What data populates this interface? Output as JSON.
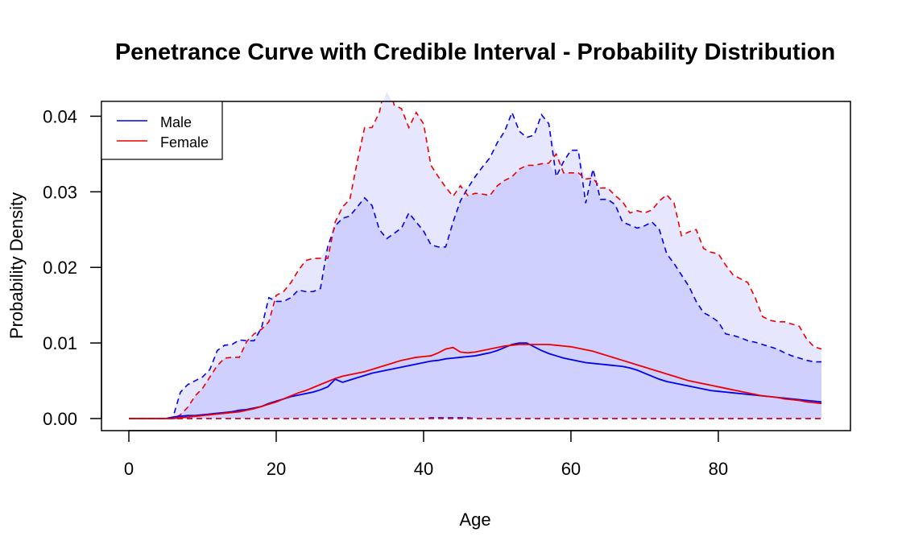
{
  "chart_data": {
    "type": "line",
    "title": "Penetrance Curve with Credible Interval - Probability Distribution",
    "xlabel": "Age",
    "ylabel": "Probability Density",
    "xlim": [
      0,
      94
    ],
    "ylim": [
      0,
      0.042
    ],
    "xticks": [
      0,
      20,
      40,
      60,
      80
    ],
    "xtick_labels": [
      "0",
      "20",
      "40",
      "60",
      "80"
    ],
    "yticks": [
      0,
      0.01,
      0.02,
      0.03,
      0.04
    ],
    "ytick_labels": [
      "0.00",
      "0.01",
      "0.02",
      "0.03",
      "0.04"
    ],
    "grid": false,
    "legend_position": "top-left",
    "x": [
      0,
      1,
      2,
      3,
      4,
      5,
      6,
      7,
      8,
      9,
      10,
      11,
      12,
      13,
      14,
      15,
      16,
      17,
      18,
      19,
      20,
      21,
      22,
      23,
      24,
      25,
      26,
      27,
      28,
      29,
      30,
      31,
      32,
      33,
      34,
      35,
      36,
      37,
      38,
      39,
      40,
      41,
      42,
      43,
      44,
      45,
      46,
      47,
      48,
      49,
      50,
      51,
      52,
      53,
      54,
      55,
      56,
      57,
      58,
      59,
      60,
      61,
      62,
      63,
      64,
      65,
      66,
      67,
      68,
      69,
      70,
      71,
      72,
      73,
      74,
      75,
      76,
      77,
      78,
      79,
      80,
      81,
      82,
      83,
      84,
      85,
      86,
      87,
      88,
      89,
      90,
      91,
      92,
      93,
      94
    ],
    "series": [
      {
        "name": "Male",
        "color": "#0000ee",
        "mean": [
          0,
          0,
          0,
          0,
          0,
          0,
          0.0002,
          0.0003,
          0.0004,
          0.0004,
          0.0005,
          0.0006,
          0.0007,
          0.0008,
          0.0009,
          0.0011,
          0.0012,
          0.0014,
          0.0016,
          0.002,
          0.0023,
          0.0026,
          0.0029,
          0.0031,
          0.0033,
          0.0035,
          0.0038,
          0.0042,
          0.0052,
          0.0048,
          0.0051,
          0.0054,
          0.0057,
          0.006,
          0.0062,
          0.0064,
          0.0066,
          0.0068,
          0.007,
          0.0072,
          0.0074,
          0.0076,
          0.0077,
          0.0079,
          0.008,
          0.0081,
          0.0082,
          0.0083,
          0.0085,
          0.0087,
          0.009,
          0.0094,
          0.0098,
          0.01,
          0.01,
          0.0095,
          0.009,
          0.0086,
          0.0083,
          0.008,
          0.0078,
          0.0076,
          0.0074,
          0.0073,
          0.0072,
          0.0071,
          0.007,
          0.0069,
          0.0067,
          0.0064,
          0.006,
          0.0056,
          0.0052,
          0.0049,
          0.0047,
          0.0045,
          0.0043,
          0.0041,
          0.0039,
          0.0037,
          0.0036,
          0.0035,
          0.0034,
          0.0033,
          0.0032,
          0.0031,
          0.003,
          0.0029,
          0.0028,
          0.0027,
          0.0026,
          0.0025,
          0.0024,
          0.0023,
          0.0022
        ],
        "lower": [
          0,
          0,
          0,
          0,
          0,
          0,
          0,
          0,
          0,
          0,
          0,
          0,
          0,
          0,
          0,
          0,
          0,
          0,
          0,
          0,
          0,
          0,
          0,
          0,
          0,
          0,
          0,
          0,
          0,
          0,
          0,
          0,
          0,
          0,
          0,
          0,
          0,
          0,
          0,
          0,
          0,
          0.0001,
          0.0001,
          0.0001,
          0.0001,
          0.0001,
          0.0001,
          0,
          0,
          0,
          0,
          0,
          0,
          0,
          0,
          0,
          0,
          0,
          0,
          0,
          0,
          0,
          0,
          0,
          0,
          0,
          0,
          0,
          0,
          0,
          0,
          0,
          0,
          0,
          0,
          0,
          0,
          0,
          0,
          0,
          0,
          0,
          0,
          0,
          0,
          0,
          0,
          0,
          0,
          0,
          0,
          0,
          0,
          0,
          0
        ],
        "upper": [
          0,
          0,
          0,
          0,
          0,
          0,
          0.0002,
          0.0035,
          0.0045,
          0.005,
          0.0055,
          0.0065,
          0.009,
          0.0097,
          0.0098,
          0.0104,
          0.0103,
          0.0103,
          0.012,
          0.016,
          0.0155,
          0.0155,
          0.016,
          0.017,
          0.0168,
          0.0168,
          0.0172,
          0.0228,
          0.0255,
          0.0265,
          0.0268,
          0.028,
          0.0292,
          0.0282,
          0.025,
          0.0238,
          0.0245,
          0.0252,
          0.0272,
          0.026,
          0.0248,
          0.023,
          0.0227,
          0.0227,
          0.026,
          0.0288,
          0.0305,
          0.032,
          0.0333,
          0.0345,
          0.0365,
          0.038,
          0.0405,
          0.038,
          0.0372,
          0.0375,
          0.0402,
          0.039,
          0.032,
          0.034,
          0.0355,
          0.0355,
          0.0285,
          0.033,
          0.029,
          0.029,
          0.0283,
          0.026,
          0.0256,
          0.0252,
          0.0255,
          0.026,
          0.025,
          0.0218,
          0.0205,
          0.019,
          0.0175,
          0.0155,
          0.014,
          0.0135,
          0.0128,
          0.0112,
          0.011,
          0.0107,
          0.0103,
          0.0101,
          0.0098,
          0.0095,
          0.0092,
          0.0087,
          0.0083,
          0.008,
          0.0077,
          0.0075,
          0.0075
        ]
      },
      {
        "name": "Female",
        "color": "#ee0000",
        "mean": [
          0,
          0,
          0,
          0,
          0,
          0,
          0,
          0.0001,
          0.0002,
          0.0003,
          0.0004,
          0.0005,
          0.0006,
          0.0007,
          0.0008,
          0.0009,
          0.0011,
          0.0013,
          0.0016,
          0.0019,
          0.0022,
          0.0026,
          0.003,
          0.0034,
          0.0037,
          0.0041,
          0.0045,
          0.0049,
          0.0053,
          0.0056,
          0.0058,
          0.006,
          0.0062,
          0.0065,
          0.0068,
          0.0071,
          0.0074,
          0.0077,
          0.0079,
          0.0081,
          0.0082,
          0.0083,
          0.0087,
          0.0092,
          0.0094,
          0.0088,
          0.0087,
          0.0088,
          0.009,
          0.0092,
          0.0094,
          0.0096,
          0.0097,
          0.0098,
          0.0098,
          0.0098,
          0.0098,
          0.0098,
          0.0097,
          0.0096,
          0.0095,
          0.0093,
          0.0091,
          0.0089,
          0.0086,
          0.0083,
          0.008,
          0.0077,
          0.0074,
          0.0071,
          0.0068,
          0.0065,
          0.0062,
          0.0059,
          0.0056,
          0.0053,
          0.005,
          0.0048,
          0.0046,
          0.0044,
          0.0042,
          0.004,
          0.0038,
          0.0036,
          0.0034,
          0.0032,
          0.003,
          0.0029,
          0.0028,
          0.0026,
          0.0025,
          0.0024,
          0.0022,
          0.0021,
          0.002
        ],
        "lower": [
          0,
          0,
          0,
          0,
          0,
          0,
          0,
          0,
          0,
          0,
          0,
          0,
          0,
          0,
          0,
          0,
          0,
          0,
          0,
          0,
          0,
          0,
          0,
          0,
          0,
          0,
          0,
          0,
          0,
          0,
          0,
          0,
          0,
          0,
          0,
          0,
          0,
          0,
          0,
          0,
          0,
          0,
          0,
          0,
          0,
          0,
          0,
          0,
          0,
          0,
          0,
          0,
          0,
          0,
          0,
          0,
          0,
          0,
          0,
          0,
          0,
          0,
          0,
          0,
          0,
          0,
          0,
          0,
          0,
          0,
          0,
          0,
          0,
          0,
          0,
          0,
          0,
          0,
          0,
          0,
          0,
          0,
          0,
          0,
          0,
          0,
          0,
          0,
          0,
          0,
          0,
          0,
          0,
          0,
          0
        ],
        "upper": [
          0,
          0,
          0,
          0,
          0,
          0,
          0,
          0.0005,
          0.0015,
          0.003,
          0.004,
          0.0055,
          0.007,
          0.008,
          0.0081,
          0.0081,
          0.0102,
          0.0112,
          0.0118,
          0.0128,
          0.0163,
          0.0168,
          0.018,
          0.0196,
          0.0209,
          0.0212,
          0.0212,
          0.0212,
          0.026,
          0.028,
          0.029,
          0.034,
          0.0385,
          0.0385,
          0.0405,
          0.045,
          0.0415,
          0.041,
          0.0385,
          0.0405,
          0.039,
          0.0335,
          0.032,
          0.0306,
          0.0294,
          0.0308,
          0.0295,
          0.0298,
          0.0297,
          0.0295,
          0.0308,
          0.0315,
          0.032,
          0.033,
          0.0335,
          0.0335,
          0.0337,
          0.0338,
          0.035,
          0.0325,
          0.0325,
          0.0325,
          0.0317,
          0.0318,
          0.0305,
          0.0305,
          0.0295,
          0.0287,
          0.0272,
          0.0275,
          0.0272,
          0.0276,
          0.0288,
          0.0296,
          0.0285,
          0.0242,
          0.0247,
          0.025,
          0.0225,
          0.022,
          0.0218,
          0.0203,
          0.019,
          0.0185,
          0.018,
          0.016,
          0.0135,
          0.013,
          0.0128,
          0.0128,
          0.0125,
          0.0122,
          0.0105,
          0.0095,
          0.0092
        ]
      }
    ],
    "colors": {
      "male_band_fill": "#d0d0ff",
      "female_band_fill": "#e6e6ff"
    }
  }
}
